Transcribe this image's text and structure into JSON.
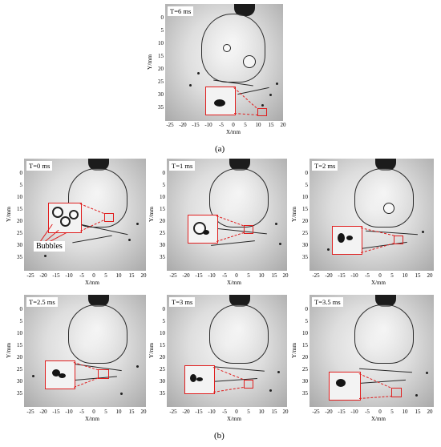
{
  "panels": [
    {
      "time": "T=6 ms"
    },
    {
      "time": "T=0 ms",
      "annotation": "Bubbles"
    },
    {
      "time": "T=1 ms"
    },
    {
      "time": "T=2 ms"
    },
    {
      "time": "T=2.5 ms"
    },
    {
      "time": "T=3 ms"
    },
    {
      "time": "T=3.5 ms"
    }
  ],
  "axes": {
    "xlabel": "X/mm",
    "ylabel": "Y/mm",
    "xticks": [
      "-25",
      "-20",
      "-15",
      "-10",
      "-5",
      "0",
      "5",
      "10",
      "15",
      "20"
    ],
    "yticks": [
      "0",
      "5",
      "10",
      "15",
      "20",
      "25",
      "30",
      "35"
    ]
  },
  "captions": {
    "a": "(a)",
    "b": "(b)"
  }
}
